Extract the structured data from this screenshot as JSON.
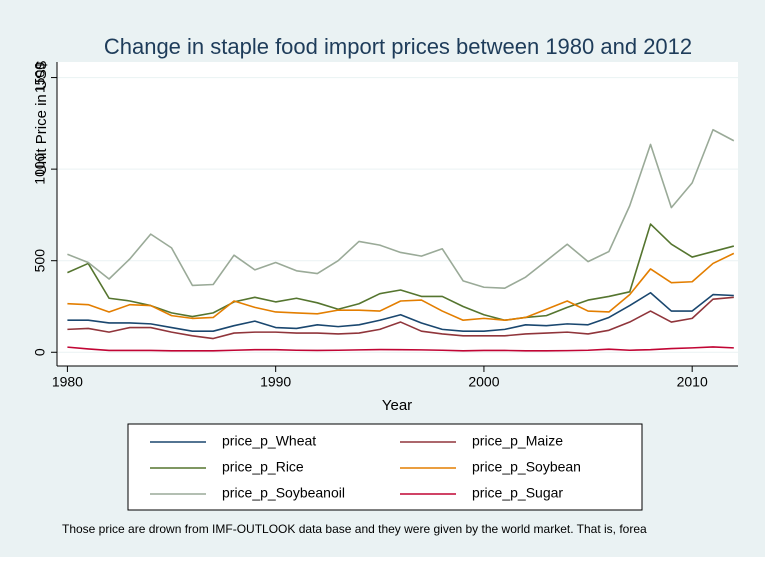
{
  "chart_data": {
    "type": "line",
    "title": "Change in staple food import prices between 1980 and 2012",
    "x_label": "Year",
    "y_label": "Unit Price in US$",
    "note": "Those price are drown from IMF-OUTLOOK data base and they were given by the world market. That is, forea",
    "x": [
      1980,
      1981,
      1982,
      1983,
      1984,
      1985,
      1986,
      1987,
      1988,
      1989,
      1990,
      1991,
      1992,
      1993,
      1994,
      1995,
      1996,
      1997,
      1998,
      1999,
      2000,
      2001,
      2002,
      2003,
      2004,
      2005,
      2006,
      2007,
      2008,
      2009,
      2010,
      2011,
      2012
    ],
    "series": [
      {
        "name": "price_p_Wheat",
        "color": "#1a476f",
        "values": [
          175,
          175,
          160,
          160,
          155,
          135,
          115,
          115,
          145,
          170,
          135,
          130,
          150,
          140,
          150,
          175,
          205,
          160,
          125,
          115,
          115,
          125,
          150,
          145,
          155,
          150,
          190,
          255,
          325,
          225,
          225,
          315,
          310
        ]
      },
      {
        "name": "price_p_Maize",
        "color": "#90353b",
        "values": [
          125,
          130,
          110,
          135,
          135,
          110,
          90,
          75,
          105,
          110,
          110,
          105,
          105,
          100,
          105,
          125,
          165,
          115,
          100,
          90,
          90,
          90,
          100,
          105,
          110,
          100,
          120,
          165,
          225,
          165,
          185,
          290,
          300
        ]
      },
      {
        "name": "price_p_Rice",
        "color": "#55752f",
        "values": [
          435,
          485,
          295,
          280,
          255,
          215,
          195,
          215,
          275,
          300,
          275,
          295,
          270,
          235,
          265,
          320,
          340,
          305,
          305,
          250,
          205,
          175,
          190,
          200,
          245,
          285,
          305,
          330,
          700,
          590,
          520,
          550,
          580
        ]
      },
      {
        "name": "price_p_Soybean",
        "color": "#e37e00",
        "values": [
          265,
          260,
          220,
          260,
          255,
          200,
          185,
          190,
          280,
          245,
          220,
          215,
          210,
          230,
          230,
          225,
          280,
          285,
          225,
          175,
          185,
          175,
          190,
          235,
          280,
          225,
          220,
          315,
          455,
          380,
          385,
          485,
          540
        ]
      },
      {
        "name": "price_p_Soybeanoil",
        "color": "#9aaa98",
        "values": [
          535,
          490,
          400,
          510,
          645,
          570,
          365,
          370,
          530,
          450,
          490,
          445,
          430,
          500,
          605,
          585,
          545,
          525,
          565,
          390,
          355,
          350,
          410,
          500,
          590,
          495,
          550,
          800,
          1135,
          790,
          925,
          1215,
          1155
        ]
      },
      {
        "name": "price_p_Sugar",
        "color": "#c10534",
        "values": [
          28,
          18,
          10,
          10,
          10,
          8,
          8,
          8,
          11,
          14,
          14,
          11,
          10,
          11,
          13,
          15,
          14,
          13,
          11,
          8,
          10,
          10,
          8,
          8,
          9,
          11,
          17,
          11,
          14,
          20,
          24,
          29,
          24
        ]
      }
    ],
    "xlim": [
      1979.5,
      2012.2
    ],
    "xticks": [
      1980,
      1990,
      2000,
      2010
    ],
    "ylim": [
      -75,
      1585
    ],
    "yticks": [
      0,
      500,
      1000,
      1500
    ],
    "grid": true
  }
}
